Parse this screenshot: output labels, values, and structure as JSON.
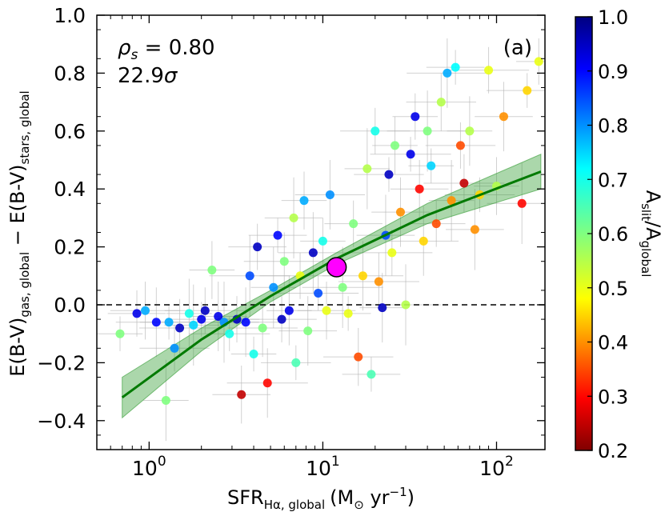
{
  "chart_data": {
    "type": "scatter",
    "panel_label": "(a)",
    "xscale": "log",
    "xlim": [
      0.5,
      190
    ],
    "ylim": [
      -0.5,
      1.0
    ],
    "grid": false,
    "x_ticks": [
      {
        "value": 1,
        "base": "10",
        "exp": "0"
      },
      {
        "value": 10,
        "base": "10",
        "exp": "1"
      },
      {
        "value": 100,
        "base": "10",
        "exp": "2"
      }
    ],
    "y_ticks": [
      {
        "value": 1.0,
        "label": "1.0"
      },
      {
        "value": 0.8,
        "label": "0.8"
      },
      {
        "value": 0.6,
        "label": "0.6"
      },
      {
        "value": 0.4,
        "label": "0.4"
      },
      {
        "value": 0.2,
        "label": "0.2"
      },
      {
        "value": 0.0,
        "label": "0.0"
      },
      {
        "value": -0.2,
        "label": "−0.2"
      },
      {
        "value": -0.4,
        "label": "−0.4"
      }
    ],
    "xlabel": {
      "main": "SFR",
      "sub": "Hα, global",
      "rest": "(M",
      "sun": "⊙",
      "unit": " yr",
      "sup": "−1",
      "close": ")"
    },
    "ylabel": {
      "p1": "E(B-V)",
      "sub1": "gas, global",
      "mid": " − E(B-V)",
      "sub2": "stars, global"
    },
    "annotation": {
      "rho": "ρ",
      "rho_sub": "s",
      "rho_eq": " = 0.80",
      "sig": "22.9",
      "sigma": "σ"
    },
    "colorbar": {
      "range": [
        0.2,
        1.0
      ],
      "ticks": [
        {
          "value": 1.0,
          "label": "1.0"
        },
        {
          "value": 0.9,
          "label": "0.9"
        },
        {
          "value": 0.8,
          "label": "0.8"
        },
        {
          "value": 0.7,
          "label": "0.7"
        },
        {
          "value": 0.6,
          "label": "0.6"
        },
        {
          "value": 0.5,
          "label": "0.5"
        },
        {
          "value": 0.4,
          "label": "0.4"
        },
        {
          "value": 0.3,
          "label": "0.3"
        },
        {
          "value": 0.2,
          "label": "0.2"
        }
      ],
      "label": {
        "A1": "A",
        "sub1": "slit",
        "slash": "/A",
        "sub2": "global"
      }
    },
    "zero_line": {
      "y": 0.0,
      "style": "dashed",
      "color": "#000000"
    },
    "fit": {
      "color": "#007a00",
      "band_color": "#2e9a2e",
      "points": [
        {
          "x": 0.7,
          "y": -0.32,
          "lo": -0.39,
          "hi": -0.25
        },
        {
          "x": 2.0,
          "y": -0.12,
          "lo": -0.16,
          "hi": -0.08
        },
        {
          "x": 5.0,
          "y": 0.03,
          "lo": 0.01,
          "hi": 0.05
        },
        {
          "x": 12.0,
          "y": 0.16,
          "lo": 0.14,
          "hi": 0.18
        },
        {
          "x": 40.0,
          "y": 0.31,
          "lo": 0.28,
          "hi": 0.35
        },
        {
          "x": 180.0,
          "y": 0.46,
          "lo": 0.4,
          "hi": 0.52
        }
      ]
    },
    "highlight": {
      "x": 12.0,
      "y": 0.13,
      "color": "#ff00ff"
    },
    "sample_points": [
      {
        "x": 0.68,
        "y": -0.1,
        "c": 0.6
      },
      {
        "x": 0.85,
        "y": -0.03,
        "c": 0.92
      },
      {
        "x": 0.95,
        "y": -0.02,
        "c": 0.78
      },
      {
        "x": 1.1,
        "y": -0.06,
        "c": 0.9
      },
      {
        "x": 1.25,
        "y": -0.33,
        "c": 0.6
      },
      {
        "x": 1.3,
        "y": -0.06,
        "c": 0.78
      },
      {
        "x": 1.4,
        "y": -0.15,
        "c": 0.8
      },
      {
        "x": 1.5,
        "y": -0.08,
        "c": 0.95
      },
      {
        "x": 1.7,
        "y": -0.03,
        "c": 0.7
      },
      {
        "x": 1.8,
        "y": -0.07,
        "c": 0.75
      },
      {
        "x": 2.0,
        "y": -0.05,
        "c": 0.92
      },
      {
        "x": 2.1,
        "y": -0.02,
        "c": 0.95
      },
      {
        "x": 2.3,
        "y": 0.12,
        "c": 0.6
      },
      {
        "x": 2.5,
        "y": -0.04,
        "c": 0.92
      },
      {
        "x": 2.7,
        "y": -0.06,
        "c": 0.8
      },
      {
        "x": 2.9,
        "y": -0.1,
        "c": 0.7
      },
      {
        "x": 3.2,
        "y": -0.05,
        "c": 0.95
      },
      {
        "x": 3.4,
        "y": -0.31,
        "c": 0.25
      },
      {
        "x": 3.6,
        "y": -0.06,
        "c": 0.9
      },
      {
        "x": 3.8,
        "y": 0.1,
        "c": 0.85
      },
      {
        "x": 4.0,
        "y": -0.17,
        "c": 0.7
      },
      {
        "x": 4.2,
        "y": 0.2,
        "c": 0.95
      },
      {
        "x": 4.5,
        "y": -0.08,
        "c": 0.6
      },
      {
        "x": 4.8,
        "y": -0.27,
        "c": 0.3
      },
      {
        "x": 5.2,
        "y": 0.06,
        "c": 0.8
      },
      {
        "x": 5.5,
        "y": 0.24,
        "c": 0.9
      },
      {
        "x": 5.8,
        "y": -0.05,
        "c": 0.95
      },
      {
        "x": 6.0,
        "y": 0.15,
        "c": 0.6
      },
      {
        "x": 6.4,
        "y": -0.02,
        "c": 0.92
      },
      {
        "x": 6.8,
        "y": 0.3,
        "c": 0.55
      },
      {
        "x": 7.0,
        "y": -0.2,
        "c": 0.65
      },
      {
        "x": 7.4,
        "y": 0.1,
        "c": 0.5
      },
      {
        "x": 7.8,
        "y": 0.36,
        "c": 0.78
      },
      {
        "x": 8.2,
        "y": -0.09,
        "c": 0.6
      },
      {
        "x": 8.8,
        "y": 0.18,
        "c": 0.95
      },
      {
        "x": 9.4,
        "y": 0.04,
        "c": 0.85
      },
      {
        "x": 10.0,
        "y": 0.22,
        "c": 0.7
      },
      {
        "x": 10.5,
        "y": -0.02,
        "c": 0.5
      },
      {
        "x": 11.0,
        "y": 0.38,
        "c": 0.8
      },
      {
        "x": 13.0,
        "y": 0.06,
        "c": 0.6
      },
      {
        "x": 14.0,
        "y": -0.03,
        "c": 0.5
      },
      {
        "x": 15.0,
        "y": 0.28,
        "c": 0.6
      },
      {
        "x": 16.0,
        "y": -0.18,
        "c": 0.35
      },
      {
        "x": 17.0,
        "y": 0.1,
        "c": 0.45
      },
      {
        "x": 18.0,
        "y": 0.47,
        "c": 0.55
      },
      {
        "x": 19.0,
        "y": -0.24,
        "c": 0.65
      },
      {
        "x": 20.0,
        "y": 0.6,
        "c": 0.7
      },
      {
        "x": 21.0,
        "y": 0.08,
        "c": 0.4
      },
      {
        "x": 22.0,
        "y": -0.01,
        "c": 0.95
      },
      {
        "x": 23.0,
        "y": 0.24,
        "c": 0.85
      },
      {
        "x": 24.0,
        "y": 0.45,
        "c": 0.95
      },
      {
        "x": 25.0,
        "y": 0.18,
        "c": 0.5
      },
      {
        "x": 26.0,
        "y": 0.55,
        "c": 0.6
      },
      {
        "x": 28.0,
        "y": 0.32,
        "c": 0.4
      },
      {
        "x": 30.0,
        "y": 0.0,
        "c": 0.55
      },
      {
        "x": 32.0,
        "y": 0.52,
        "c": 0.92
      },
      {
        "x": 34.0,
        "y": 0.65,
        "c": 0.92
      },
      {
        "x": 36.0,
        "y": 0.4,
        "c": 0.3
      },
      {
        "x": 38.0,
        "y": 0.22,
        "c": 0.45
      },
      {
        "x": 40.0,
        "y": 0.6,
        "c": 0.6
      },
      {
        "x": 42.0,
        "y": 0.48,
        "c": 0.75
      },
      {
        "x": 45.0,
        "y": 0.28,
        "c": 0.35
      },
      {
        "x": 48.0,
        "y": 0.7,
        "c": 0.55
      },
      {
        "x": 52.0,
        "y": 0.8,
        "c": 0.78
      },
      {
        "x": 55.0,
        "y": 0.36,
        "c": 0.4
      },
      {
        "x": 58.0,
        "y": 0.82,
        "c": 0.72
      },
      {
        "x": 62.0,
        "y": 0.55,
        "c": 0.35
      },
      {
        "x": 65.0,
        "y": 0.42,
        "c": 0.25
      },
      {
        "x": 70.0,
        "y": 0.6,
        "c": 0.55
      },
      {
        "x": 75.0,
        "y": 0.26,
        "c": 0.4
      },
      {
        "x": 80.0,
        "y": 0.38,
        "c": 0.45
      },
      {
        "x": 90.0,
        "y": 0.81,
        "c": 0.5
      },
      {
        "x": 100.0,
        "y": 0.41,
        "c": 0.55
      },
      {
        "x": 110.0,
        "y": 0.65,
        "c": 0.4
      },
      {
        "x": 140.0,
        "y": 0.35,
        "c": 0.3
      },
      {
        "x": 150.0,
        "y": 0.74,
        "c": 0.45
      },
      {
        "x": 175.0,
        "y": 0.84,
        "c": 0.5
      }
    ]
  }
}
